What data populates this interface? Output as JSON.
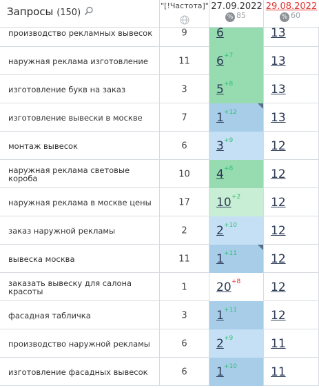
{
  "header": {
    "title": "Запросы",
    "count": "(150)",
    "freq_label": "\"[!Частота]\"",
    "date1": "27.09.2022",
    "date1_pct": "85",
    "date2": "29.08.2022",
    "date2_pct": "60",
    "pct_symbol": "%"
  },
  "colors": {
    "green": "#96dcb0",
    "light_green": "#c8efd5",
    "blue": "#a8cde9",
    "light_blue": "#c5e0f4",
    "white": "#ffffff",
    "up": "#2fbf71",
    "down": "#e0322f"
  },
  "rows": [
    {
      "query": "производство рекламных вывесок",
      "freq": "9",
      "pos1": "6",
      "delta": "",
      "dir": "",
      "pos2": "13",
      "bg": "green",
      "flag": false
    },
    {
      "query": "наружная реклама изготовление",
      "freq": "11",
      "pos1": "6",
      "delta": "+7",
      "dir": "up",
      "pos2": "13",
      "bg": "green",
      "flag": false
    },
    {
      "query": "изготовление букв на заказ",
      "freq": "3",
      "pos1": "5",
      "delta": "+8",
      "dir": "up",
      "pos2": "13",
      "bg": "green",
      "flag": false
    },
    {
      "query": "изготовление вывески в москве",
      "freq": "7",
      "pos1": "1",
      "delta": "+12",
      "dir": "up",
      "pos2": "13",
      "bg": "blue",
      "flag": true
    },
    {
      "query": "монтаж вывесок",
      "freq": "6",
      "pos1": "3",
      "delta": "+9",
      "dir": "up",
      "pos2": "12",
      "bg": "light_blue",
      "flag": false
    },
    {
      "query": "наружная реклама световые короба",
      "freq": "10",
      "pos1": "4",
      "delta": "+8",
      "dir": "up",
      "pos2": "12",
      "bg": "green",
      "flag": false
    },
    {
      "query": "наружная реклама в москве цены",
      "freq": "17",
      "pos1": "10",
      "delta": "+2",
      "dir": "up",
      "pos2": "12",
      "bg": "light_green",
      "flag": false
    },
    {
      "query": "заказ наружной рекламы",
      "freq": "2",
      "pos1": "2",
      "delta": "+10",
      "dir": "up",
      "pos2": "12",
      "bg": "light_blue",
      "flag": false
    },
    {
      "query": "вывеска москва",
      "freq": "11",
      "pos1": "1",
      "delta": "+11",
      "dir": "up",
      "pos2": "12",
      "bg": "blue",
      "flag": true
    },
    {
      "query": "заказать вывеску для салона красоты",
      "freq": "1",
      "pos1": "20",
      "delta": "+8",
      "dir": "down",
      "pos2": "12",
      "bg": "white",
      "flag": false
    },
    {
      "query": "фасадная табличка",
      "freq": "3",
      "pos1": "1",
      "delta": "+11",
      "dir": "up",
      "pos2": "12",
      "bg": "blue",
      "flag": false
    },
    {
      "query": "производство наружной рекламы",
      "freq": "6",
      "pos1": "2",
      "delta": "+9",
      "dir": "up",
      "pos2": "11",
      "bg": "light_blue",
      "flag": false
    },
    {
      "query": "изготовление фасадных вывесок",
      "freq": "6",
      "pos1": "1",
      "delta": "+10",
      "dir": "up",
      "pos2": "11",
      "bg": "blue",
      "flag": false
    }
  ]
}
